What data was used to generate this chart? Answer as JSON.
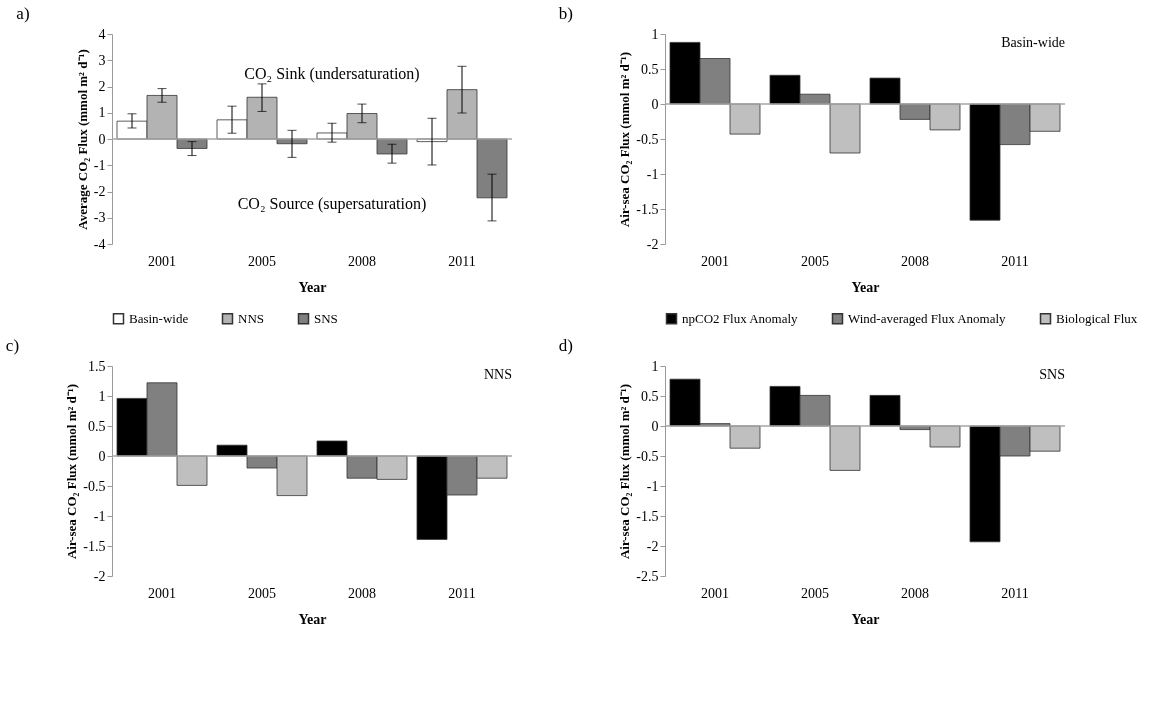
{
  "chart_data": [
    {
      "type": "bar",
      "title": "a)",
      "xlabel": "Year",
      "ylabel": "Average CO₂ Flux (mmol m² d⁻¹)",
      "categories": [
        "2001",
        "2005",
        "2008",
        "2011"
      ],
      "series": [
        {
          "name": "Basin-wide",
          "color": "#ffffff",
          "values": [
            0.68,
            0.73,
            0.23,
            -0.1
          ],
          "errors": [
            [
              0.42,
              0.96
            ],
            [
              0.22,
              1.25
            ],
            [
              -0.12,
              0.6
            ],
            [
              -0.99,
              0.79
            ]
          ]
        },
        {
          "name": "NNS",
          "color": "#b3b3b3",
          "values": [
            1.66,
            1.59,
            0.97,
            1.88
          ],
          "errors": [
            [
              1.4,
              1.92
            ],
            [
              1.05,
              2.1
            ],
            [
              0.62,
              1.33
            ],
            [
              0.99,
              2.77
            ]
          ]
        },
        {
          "name": "SNS",
          "color": "#808080",
          "values": [
            -0.36,
            -0.18,
            -0.57,
            -2.24
          ],
          "errors": [
            [
              -0.63,
              -0.1
            ],
            [
              -0.7,
              0.33
            ],
            [
              -0.92,
              -0.2
            ],
            [
              -3.12,
              -1.34
            ]
          ]
        }
      ],
      "ylim": [
        -4,
        4
      ],
      "yticks": [
        -4,
        -3,
        -2,
        -1,
        0,
        1,
        2,
        3,
        4
      ],
      "ref_lines": [
        {
          "axis": "y",
          "value": 0,
          "color": "#a6a6a6"
        }
      ],
      "annotations": [
        "CO₂ Sink (undersaturation)",
        "CO₂ Source (supersaturation)"
      ],
      "legend": "bottom",
      "grid": false
    },
    {
      "type": "bar",
      "title": "b)",
      "xlabel": "Year",
      "ylabel": "Air-sea CO₂ Flux (mmol m² d⁻¹)",
      "categories": [
        "2001",
        "2005",
        "2008",
        "2011"
      ],
      "series": [
        {
          "name": "npCO2 Flux Anomaly",
          "color": "#000000",
          "values": [
            0.88,
            0.41,
            0.37,
            -1.66
          ]
        },
        {
          "name": "Wind-averaged Flux Anomaly",
          "color": "#808080",
          "values": [
            0.65,
            0.14,
            -0.22,
            -0.58
          ]
        },
        {
          "name": "Biological Flux",
          "color": "#bfbfbf",
          "values": [
            -0.43,
            -0.7,
            -0.37,
            -0.39
          ]
        }
      ],
      "ylim": [
        -2,
        1
      ],
      "yticks": [
        -2,
        -1.5,
        -1,
        -0.5,
        0,
        0.5,
        1
      ],
      "ref_lines": [
        {
          "axis": "y",
          "value": 0,
          "color": "#a6a6a6"
        }
      ],
      "annotations": [
        "Basin-wide"
      ],
      "legend": "bottom",
      "grid": false
    },
    {
      "type": "bar",
      "title": "c)",
      "xlabel": "Year",
      "ylabel": "Air-sea CO₂ Flux (mmol m² d⁻¹)",
      "categories": [
        "2001",
        "2005",
        "2008",
        "2011"
      ],
      "series": [
        {
          "color": "#000000",
          "values": [
            0.96,
            0.18,
            0.25,
            -1.39
          ]
        },
        {
          "color": "#808080",
          "values": [
            1.22,
            -0.2,
            -0.37,
            -0.65
          ]
        },
        {
          "color": "#bfbfbf",
          "values": [
            -0.49,
            -0.66,
            -0.39,
            -0.37
          ]
        }
      ],
      "ylim": [
        -2,
        1.5
      ],
      "yticks": [
        -2,
        -1.5,
        -1,
        -0.5,
        0,
        0.5,
        1,
        1.5
      ],
      "ref_lines": [
        {
          "axis": "y",
          "value": 0,
          "color": "#a6a6a6"
        }
      ],
      "annotations": [
        "NNS"
      ],
      "grid": false
    },
    {
      "type": "bar",
      "title": "d)",
      "xlabel": "Year",
      "ylabel": "Air-sea CO₂ Flux (mmol m² d⁻¹)",
      "categories": [
        "2001",
        "2005",
        "2008",
        "2011"
      ],
      "series": [
        {
          "color": "#000000",
          "values": [
            0.78,
            0.66,
            0.51,
            -1.93
          ]
        },
        {
          "color": "#808080",
          "values": [
            0.04,
            0.51,
            -0.06,
            -0.5
          ]
        },
        {
          "color": "#bfbfbf",
          "values": [
            -0.37,
            -0.74,
            -0.35,
            -0.42
          ]
        }
      ],
      "ylim": [
        -2.5,
        1
      ],
      "yticks": [
        -2.5,
        -2,
        -1.5,
        -1,
        -0.5,
        0,
        0.5,
        1
      ],
      "ref_lines": [
        {
          "axis": "y",
          "value": 0,
          "color": "#a6a6a6"
        }
      ],
      "annotations": [
        "SNS"
      ],
      "grid": false
    }
  ]
}
